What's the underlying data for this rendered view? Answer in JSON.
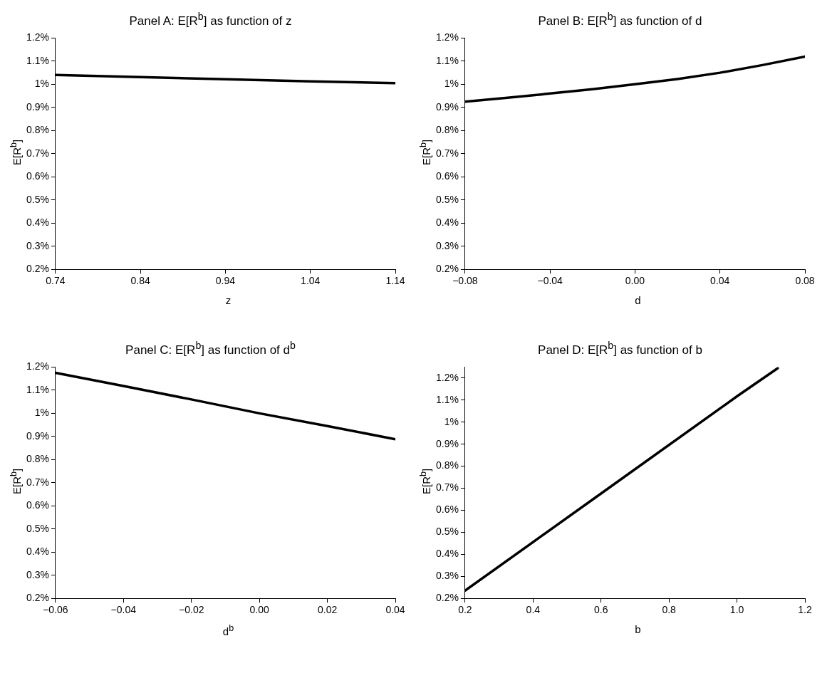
{
  "chart_data": [
    {
      "type": "line",
      "title": "Panel A:   E[R$^{b}$] as function of z",
      "xlabel": "z",
      "ylabel": "E[R$^{b}$]",
      "color": "#000000",
      "x": [
        0.74,
        0.84,
        0.94,
        1.04,
        1.14
      ],
      "values": [
        1.04,
        1.031,
        1.022,
        1.013,
        1.005
      ],
      "xlim": [
        0.74,
        1.14
      ],
      "xticks": [
        0.74,
        0.84,
        0.94,
        1.04,
        1.14
      ],
      "ylim": [
        0.2,
        1.2
      ],
      "yticks": [
        {
          "value": 0.2,
          "label": "0.2%"
        },
        {
          "value": 0.3,
          "label": "0.3%"
        },
        {
          "value": 0.4,
          "label": "0.4%"
        },
        {
          "value": 0.5,
          "label": "0.5%"
        },
        {
          "value": 0.6,
          "label": "0.6%"
        },
        {
          "value": 0.7,
          "label": "0.7%"
        },
        {
          "value": 0.8,
          "label": "0.8%"
        },
        {
          "value": 0.9,
          "label": "0.9%"
        },
        {
          "value": 1,
          "label": "1%"
        },
        {
          "value": 1.1,
          "label": "1.1%"
        },
        {
          "value": 1.2,
          "label": "1.2%"
        }
      ]
    },
    {
      "type": "line",
      "title": "Panel B:   E[R$^{b}$] as function of d",
      "xlabel": "d",
      "ylabel": "E[R$^{b}$]",
      "color": "#000000",
      "x": [
        -0.08,
        -0.06,
        -0.04,
        -0.02,
        0,
        0.02,
        0.04,
        0.06,
        0.08
      ],
      "values": [
        0.925,
        0.942,
        0.96,
        0.979,
        1.0,
        1.023,
        1.05,
        1.083,
        1.12
      ],
      "xlim": [
        -0.08,
        0.08
      ],
      "xticks": [
        {
          "value": -0.08,
          "label": "−0.08"
        },
        {
          "value": -0.04,
          "label": "−0.04"
        },
        {
          "value": 0,
          "label": "0.00"
        },
        0.04,
        0.08
      ],
      "ylim": [
        0.2,
        1.2
      ],
      "yticks": [
        {
          "value": 0.2,
          "label": "0.2%"
        },
        {
          "value": 0.3,
          "label": "0.3%"
        },
        {
          "value": 0.4,
          "label": "0.4%"
        },
        {
          "value": 0.5,
          "label": "0.5%"
        },
        {
          "value": 0.6,
          "label": "0.6%"
        },
        {
          "value": 0.7,
          "label": "0.7%"
        },
        {
          "value": 0.8,
          "label": "0.8%"
        },
        {
          "value": 0.9,
          "label": "0.9%"
        },
        {
          "value": 1,
          "label": "1%"
        },
        {
          "value": 1.1,
          "label": "1.1%"
        },
        {
          "value": 1.2,
          "label": "1.2%"
        }
      ]
    },
    {
      "type": "line",
      "title": "Panel C:   E[R$^{b}$] as function of d$^{b}$",
      "xlabel": "d$^{b}$",
      "ylabel": "E[R$^{b}$]",
      "color": "#000000",
      "x": [
        -0.06,
        -0.04,
        -0.02,
        0,
        0.02,
        0.04
      ],
      "values": [
        1.175,
        1.118,
        1.06,
        1.0,
        0.945,
        0.888
      ],
      "xlim": [
        -0.06,
        0.04
      ],
      "xticks": [
        {
          "value": -0.06,
          "label": "−0.06"
        },
        {
          "value": -0.04,
          "label": "−0.04"
        },
        {
          "value": -0.02,
          "label": "−0.02"
        },
        {
          "value": 0,
          "label": "0.00"
        },
        0.02,
        0.04
      ],
      "ylim": [
        0.2,
        1.2
      ],
      "yticks": [
        {
          "value": 0.2,
          "label": "0.2%"
        },
        {
          "value": 0.3,
          "label": "0.3%"
        },
        {
          "value": 0.4,
          "label": "0.4%"
        },
        {
          "value": 0.5,
          "label": "0.5%"
        },
        {
          "value": 0.6,
          "label": "0.6%"
        },
        {
          "value": 0.7,
          "label": "0.7%"
        },
        {
          "value": 0.8,
          "label": "0.8%"
        },
        {
          "value": 0.9,
          "label": "0.9%"
        },
        {
          "value": 1,
          "label": "1%"
        },
        {
          "value": 1.1,
          "label": "1.1%"
        },
        {
          "value": 1.2,
          "label": "1.2%"
        }
      ]
    },
    {
      "type": "line",
      "title": "Panel D:   E[R$^{b}$] as function of b",
      "xlabel": "b",
      "ylabel": "E[R$^{b}$]",
      "color": "#000000",
      "x": [
        0.2,
        0.6,
        1.0,
        1.12
      ],
      "values": [
        0.235,
        0.676,
        1.117,
        1.245
      ],
      "xlim": [
        0.2,
        1.2
      ],
      "xticks": [
        0.2,
        0.4,
        0.6,
        0.8,
        {
          "value": 1,
          "label": "1.0"
        },
        1.2
      ],
      "ylim": [
        0.2,
        1.25
      ],
      "yticks": [
        {
          "value": 0.2,
          "label": "0.2%"
        },
        {
          "value": 0.3,
          "label": "0.3%"
        },
        {
          "value": 0.4,
          "label": "0.4%"
        },
        {
          "value": 0.5,
          "label": "0.5%"
        },
        {
          "value": 0.6,
          "label": "0.6%"
        },
        {
          "value": 0.7,
          "label": "0.7%"
        },
        {
          "value": 0.8,
          "label": "0.8%"
        },
        {
          "value": 0.9,
          "label": "0.9%"
        },
        {
          "value": 1,
          "label": "1%"
        },
        {
          "value": 1.1,
          "label": "1.1%"
        },
        {
          "value": 1.2,
          "label": "1.2%"
        }
      ]
    }
  ]
}
